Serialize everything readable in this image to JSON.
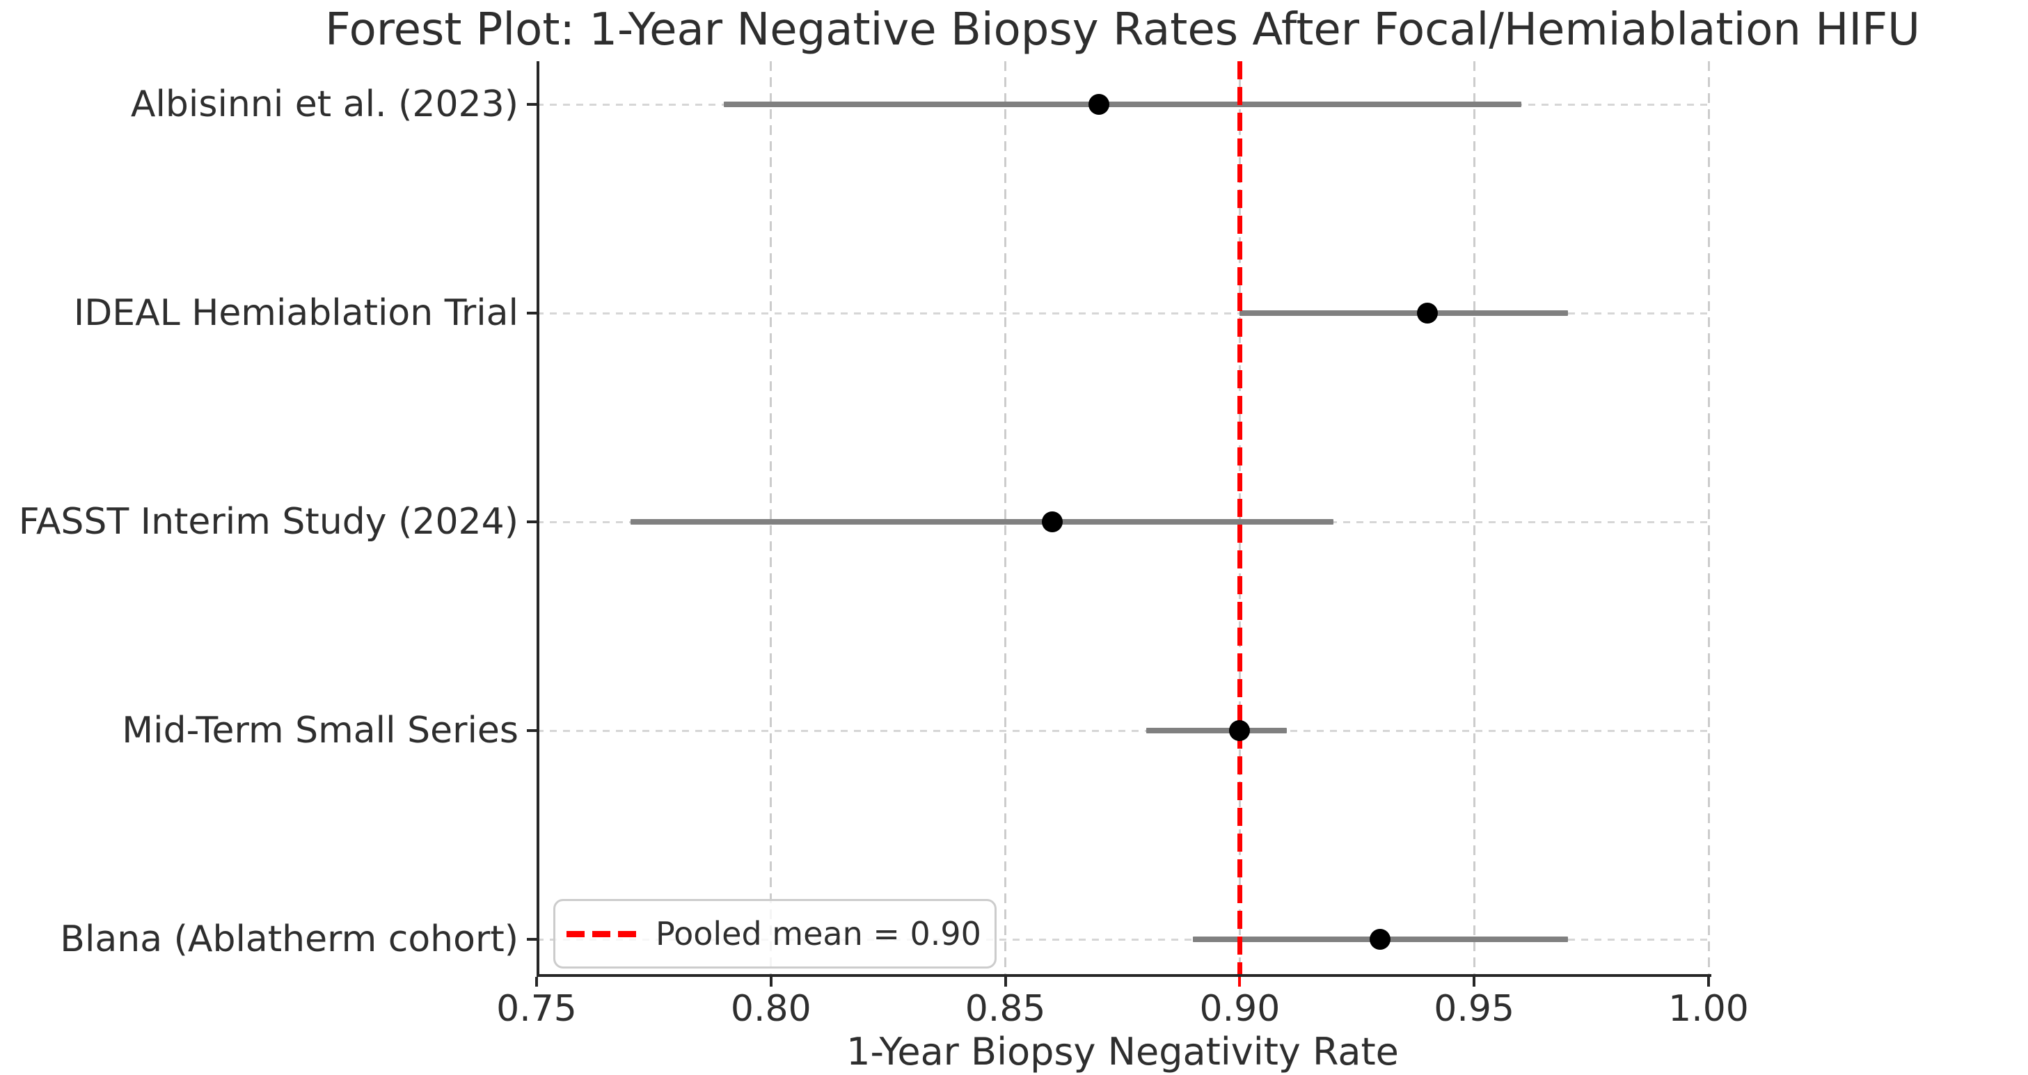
{
  "title": "Forest Plot: 1-Year Negative Biopsy Rates After Focal/Hemiablation HIFU",
  "chart_data": {
    "type": "scatter",
    "subtype": "forest-plot",
    "title": "Forest Plot: 1-Year Negative Biopsy Rates After Focal/Hemiablation HIFU",
    "xlabel": "1-Year Biopsy Negativity Rate",
    "ylabel": "",
    "xlim": [
      0.75,
      1.0
    ],
    "x_ticks": [
      "0.75",
      "0.80",
      "0.85",
      "0.90",
      "0.95",
      "1.00"
    ],
    "x_tick_values": [
      0.75,
      0.8,
      0.85,
      0.9,
      0.95,
      1.0
    ],
    "grid": true,
    "legend": {
      "label": "Pooled mean = 0.90",
      "position": "lower left"
    },
    "pooled_mean": 0.9,
    "studies": [
      {
        "label": "Albisinni et al. (2023)",
        "point": 0.87,
        "ci_low": 0.79,
        "ci_high": 0.96
      },
      {
        "label": "IDEAL Hemiablation Trial",
        "point": 0.94,
        "ci_low": 0.9,
        "ci_high": 0.97
      },
      {
        "label": "FASST Interim Study (2024)",
        "point": 0.86,
        "ci_low": 0.77,
        "ci_high": 0.92
      },
      {
        "label": "Mid-Term Small Series",
        "point": 0.9,
        "ci_low": 0.88,
        "ci_high": 0.91
      },
      {
        "label": "Blana (Ablatherm cohort)",
        "point": 0.93,
        "ci_low": 0.89,
        "ci_high": 0.97
      }
    ],
    "colors": {
      "marker": "#000000",
      "ci_bar": "#808080",
      "pooled_line": "#ff0000",
      "grid": "#cccccc",
      "spine": "#262626",
      "text": "#2e2e2e",
      "legend_border": "#cccccc"
    }
  }
}
